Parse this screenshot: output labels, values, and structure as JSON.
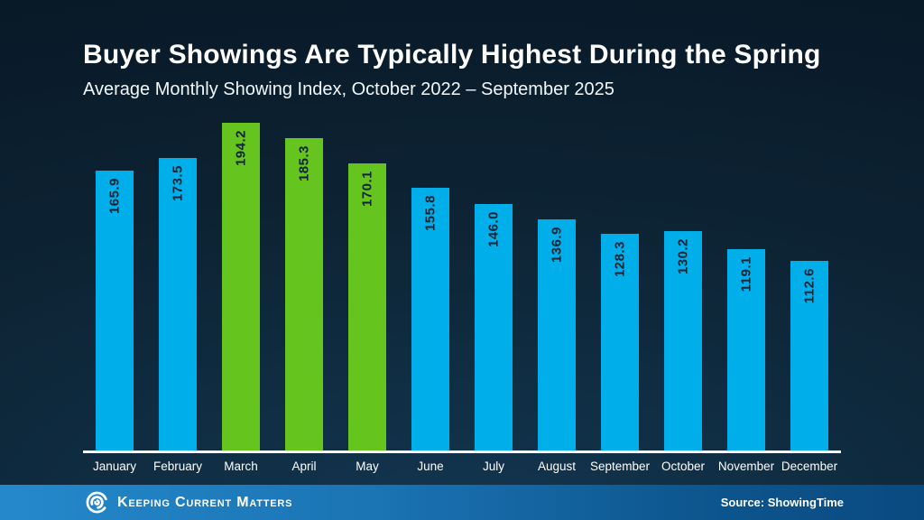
{
  "slide": {
    "title": "Buyer Showings Are Typically Highest During the Spring",
    "subtitle": "Average Monthly Showing Index, October 2022 – September 2025"
  },
  "chart_data": {
    "type": "bar",
    "title": "Buyer Showings Are Typically Highest During the Spring",
    "subtitle": "Average Monthly Showing Index, October 2022 – September 2025",
    "categories": [
      "January",
      "February",
      "March",
      "April",
      "May",
      "June",
      "July",
      "August",
      "September",
      "October",
      "November",
      "December"
    ],
    "values": [
      165.9,
      173.5,
      194.2,
      185.3,
      170.1,
      155.8,
      146.0,
      136.9,
      128.3,
      130.2,
      119.1,
      112.6
    ],
    "value_labels": [
      "165.9",
      "173.5",
      "194.2",
      "185.3",
      "170.1",
      "155.8",
      "146.0",
      "136.9",
      "128.3",
      "130.2",
      "119.1",
      "112.6"
    ],
    "highlighted_categories": [
      "March",
      "April",
      "May"
    ],
    "colors": {
      "bar_default": "#00AEE9",
      "bar_highlight": "#66C41E",
      "value_label": "#0D2536",
      "axis_line": "#FFFFFF",
      "category_label": "#FFFFFF"
    },
    "value_label_rotation": -90,
    "ylim": [
      0,
      200
    ],
    "grid": false,
    "legend": false
  },
  "footer": {
    "brand": "Keeping Current Matters",
    "logo_icon": "kcm-swirl-icon",
    "source": "Source: ShowingTime",
    "bar_gradient": [
      "#2489CB",
      "#0A4A80"
    ]
  }
}
